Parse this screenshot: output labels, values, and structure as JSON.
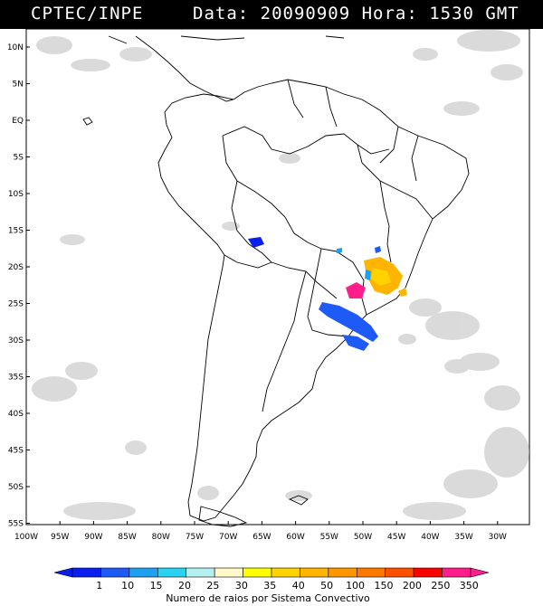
{
  "header": {
    "source": "CPTEC/INPE",
    "datetime": "Data: 20090909 Hora: 1530 GMT"
  },
  "lat_labels": [
    "10N",
    "5N",
    "EQ",
    "5S",
    "10S",
    "15S",
    "20S",
    "25S",
    "30S",
    "35S",
    "40S",
    "45S",
    "50S",
    "55S"
  ],
  "lon_labels": [
    "100W",
    "95W",
    "90W",
    "85W",
    "80W",
    "75W",
    "70W",
    "65W",
    "60W",
    "55W",
    "50W",
    "45W",
    "40W",
    "35W",
    "30W"
  ],
  "legend": {
    "values": [
      "1",
      "10",
      "15",
      "20",
      "25",
      "30",
      "35",
      "40",
      "50",
      "100",
      "150",
      "200",
      "250",
      "350"
    ],
    "colors": [
      "#0a1ef0",
      "#1e5af5",
      "#1ea0f0",
      "#28d2f0",
      "#b4f0f0",
      "#fff8c8",
      "#ffff00",
      "#ffd200",
      "#ffb400",
      "#ff9600",
      "#ff7800",
      "#ff5000",
      "#ff0000",
      "#ff1e8c"
    ],
    "title": "Numero de raios por Sistema Convectivo"
  },
  "colors": {
    "header_bg": "#000000",
    "ocean": "#ffffff",
    "cloud": "#bdbdbd",
    "coast": "#000000"
  }
}
